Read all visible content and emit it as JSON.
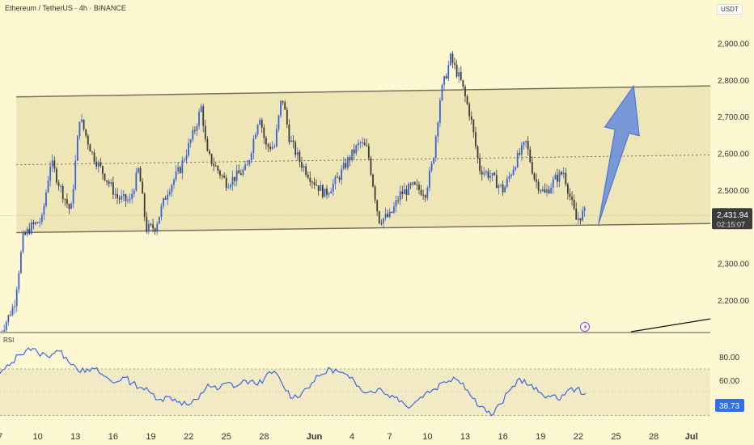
{
  "header": {
    "title": "Ethereum / TetherUS · 4h · BINANCE",
    "currency": "USDT"
  },
  "colors": {
    "background": "#fdf8d2",
    "channel_fill": "#ece3b3",
    "candle_up": "#3861d8",
    "candle_down": "#3a3a3a",
    "rsi_line": "#2f5ee0",
    "arrow": "#5b84de",
    "price_label_bg": "#3c3c3c",
    "rsi_label_bg": "#2f6fe8"
  },
  "chart_data": [
    {
      "type": "candlestick",
      "title": "Ethereum / TetherUS · 4h · BINANCE",
      "y_axis": {
        "ticks": [
          2200,
          2300,
          2400,
          2500,
          2600,
          2700,
          2800,
          2900
        ],
        "tick_labels": [
          "2,200.00",
          "2,300.00",
          "",
          "2,500.00",
          "2,600.00",
          "2,700.00",
          "2,800.00",
          "2,900.00"
        ],
        "range": [
          2115,
          2975
        ]
      },
      "x_axis": {
        "labels": [
          "7",
          "10",
          "13",
          "16",
          "19",
          "22",
          "25",
          "28",
          "Jun",
          "4",
          "7",
          "10",
          "13",
          "16",
          "19",
          "22",
          "25",
          "28",
          "Jul"
        ],
        "label_day_offsets": [
          0,
          3,
          6,
          9,
          12,
          15,
          18,
          21,
          25,
          28,
          31,
          34,
          37,
          40,
          43,
          46,
          49,
          52,
          55
        ],
        "start_date": "May 7",
        "range_days": [
          0,
          56.5
        ]
      },
      "last_price": {
        "value": 2431.94,
        "label": "2,431.94",
        "countdown": "02:15:07"
      },
      "channel": {
        "upper": [
          {
            "day": 1.3,
            "price": 2755
          },
          {
            "day": 56.5,
            "price": 2785
          }
        ],
        "lower": [
          {
            "day": 1.3,
            "price": 2385
          },
          {
            "day": 56.5,
            "price": 2410
          }
        ],
        "midline": [
          {
            "day": 1.3,
            "price": 2570
          },
          {
            "day": 56.5,
            "price": 2597
          }
        ]
      },
      "projection_arrow": {
        "from": {
          "day": 47.6,
          "price": 2408
        },
        "to": {
          "day": 50.4,
          "price": 2785
        }
      },
      "trendline": [
        {
          "day": 50.2,
          "price": 2115
        },
        {
          "day": 56.5,
          "price": 2150
        }
      ],
      "price_anchors": [
        [
          0.0,
          2095
        ],
        [
          1.3,
          2190
        ],
        [
          2.0,
          2370
        ],
        [
          2.6,
          2400
        ],
        [
          3.5,
          2420
        ],
        [
          4.2,
          2580
        ],
        [
          5.0,
          2505
        ],
        [
          5.8,
          2440
        ],
        [
          6.5,
          2700
        ],
        [
          7.5,
          2600
        ],
        [
          8.5,
          2540
        ],
        [
          9.5,
          2480
        ],
        [
          10.5,
          2470
        ],
        [
          11.2,
          2560
        ],
        [
          11.8,
          2395
        ],
        [
          12.5,
          2400
        ],
        [
          13.5,
          2500
        ],
        [
          14.5,
          2560
        ],
        [
          15.6,
          2660
        ],
        [
          16.2,
          2730
        ],
        [
          16.6,
          2600
        ],
        [
          17.4,
          2560
        ],
        [
          18.2,
          2520
        ],
        [
          19.0,
          2540
        ],
        [
          19.8,
          2560
        ],
        [
          20.8,
          2710
        ],
        [
          21.3,
          2620
        ],
        [
          22.0,
          2620
        ],
        [
          22.6,
          2760
        ],
        [
          23.2,
          2640
        ],
        [
          24.0,
          2580
        ],
        [
          25.0,
          2530
        ],
        [
          26.0,
          2490
        ],
        [
          27.0,
          2530
        ],
        [
          27.8,
          2580
        ],
        [
          28.8,
          2630
        ],
        [
          29.4,
          2610
        ],
        [
          30.3,
          2420
        ],
        [
          31.2,
          2430
        ],
        [
          32.0,
          2490
        ],
        [
          33.0,
          2510
        ],
        [
          34.0,
          2495
        ],
        [
          34.6,
          2580
        ],
        [
          35.2,
          2760
        ],
        [
          36.0,
          2860
        ],
        [
          36.8,
          2800
        ],
        [
          37.6,
          2700
        ],
        [
          38.3,
          2560
        ],
        [
          39.2,
          2540
        ],
        [
          40.2,
          2500
        ],
        [
          41.2,
          2580
        ],
        [
          42.0,
          2630
        ],
        [
          42.7,
          2530
        ],
        [
          43.5,
          2490
        ],
        [
          44.3,
          2530
        ],
        [
          45.0,
          2550
        ],
        [
          45.6,
          2470
        ],
        [
          46.0,
          2420
        ],
        [
          46.6,
          2440
        ]
      ]
    },
    {
      "type": "line",
      "title": "RSI",
      "series": [
        {
          "values": [
            66,
            73,
            82,
            88,
            84,
            81,
            86,
            80,
            72,
            67,
            70,
            64,
            58,
            63,
            58,
            54,
            49,
            44,
            46,
            42,
            39,
            44,
            57,
            52,
            58,
            55,
            60,
            57,
            62,
            68,
            55,
            45,
            50,
            58,
            65,
            70,
            67,
            62,
            55,
            50,
            53,
            48,
            46,
            38,
            42,
            49,
            53,
            59,
            63,
            58,
            45,
            38,
            30,
            40,
            52,
            62,
            56,
            50,
            47,
            44,
            51,
            53,
            49
          ]
        }
      ],
      "current": {
        "value": 38.73,
        "label": "38.73"
      },
      "y_axis": {
        "ticks": [
          60,
          80
        ],
        "tick_labels": [
          "60.00",
          "80.00"
        ],
        "band": [
          30,
          70
        ]
      }
    }
  ]
}
